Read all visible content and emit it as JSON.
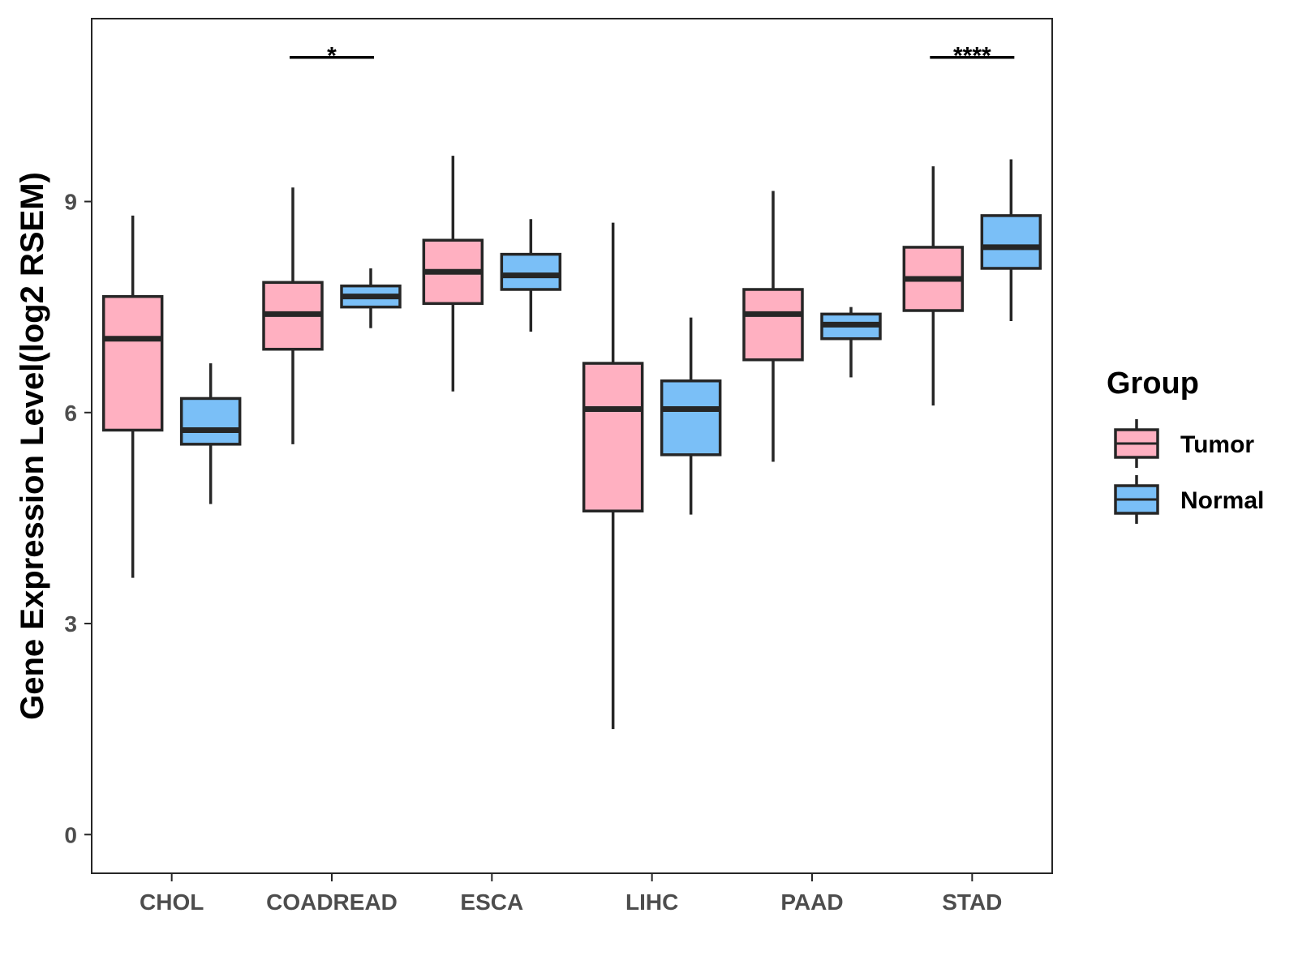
{
  "chart_data": {
    "type": "boxplot",
    "title": "",
    "xlabel": "",
    "ylabel": "Gene Expression Level(log2 RSEM)",
    "ylim": [
      -0.55,
      11.6
    ],
    "yticks": [
      0,
      3,
      6,
      9
    ],
    "categories": [
      "CHOL",
      "COADREAD",
      "ESCA",
      "LIHC",
      "PAAD",
      "STAD"
    ],
    "legend": {
      "title": "Group",
      "position": "right",
      "entries": [
        "Tumor",
        "Normal"
      ]
    },
    "colors": {
      "Tumor": "#FFB0C1",
      "Normal": "#7ABFF7",
      "outline": "#262626"
    },
    "series": [
      {
        "name": "Tumor",
        "boxes": [
          {
            "category": "CHOL",
            "min": 3.65,
            "q1": 5.75,
            "median": 7.05,
            "q3": 7.65,
            "max": 8.8
          },
          {
            "category": "COADREAD",
            "min": 5.55,
            "q1": 6.9,
            "median": 7.4,
            "q3": 7.85,
            "max": 9.2
          },
          {
            "category": "ESCA",
            "min": 6.3,
            "q1": 7.55,
            "median": 8.0,
            "q3": 8.45,
            "max": 9.65
          },
          {
            "category": "LIHC",
            "min": 1.5,
            "q1": 4.6,
            "median": 6.05,
            "q3": 6.7,
            "max": 8.7
          },
          {
            "category": "PAAD",
            "min": 5.3,
            "q1": 6.75,
            "median": 7.4,
            "q3": 7.75,
            "max": 9.15
          },
          {
            "category": "STAD",
            "min": 6.1,
            "q1": 7.45,
            "median": 7.9,
            "q3": 8.35,
            "max": 9.5
          }
        ]
      },
      {
        "name": "Normal",
        "boxes": [
          {
            "category": "CHOL",
            "min": 4.7,
            "q1": 5.55,
            "median": 5.75,
            "q3": 6.2,
            "max": 6.7
          },
          {
            "category": "COADREAD",
            "min": 7.2,
            "q1": 7.5,
            "median": 7.65,
            "q3": 7.8,
            "max": 8.05
          },
          {
            "category": "ESCA",
            "min": 7.15,
            "q1": 7.75,
            "median": 7.95,
            "q3": 8.25,
            "max": 8.75
          },
          {
            "category": "LIHC",
            "min": 4.55,
            "q1": 5.4,
            "median": 6.05,
            "q3": 6.45,
            "max": 7.35
          },
          {
            "category": "PAAD",
            "min": 6.5,
            "q1": 7.05,
            "median": 7.25,
            "q3": 7.4,
            "max": 7.5
          },
          {
            "category": "STAD",
            "min": 7.3,
            "q1": 8.05,
            "median": 8.35,
            "q3": 8.8,
            "max": 9.6
          }
        ]
      }
    ],
    "annotations": [
      {
        "category": "COADREAD",
        "label": "*",
        "y": 11.05
      },
      {
        "category": "STAD",
        "label": "****",
        "y": 11.05
      }
    ]
  }
}
